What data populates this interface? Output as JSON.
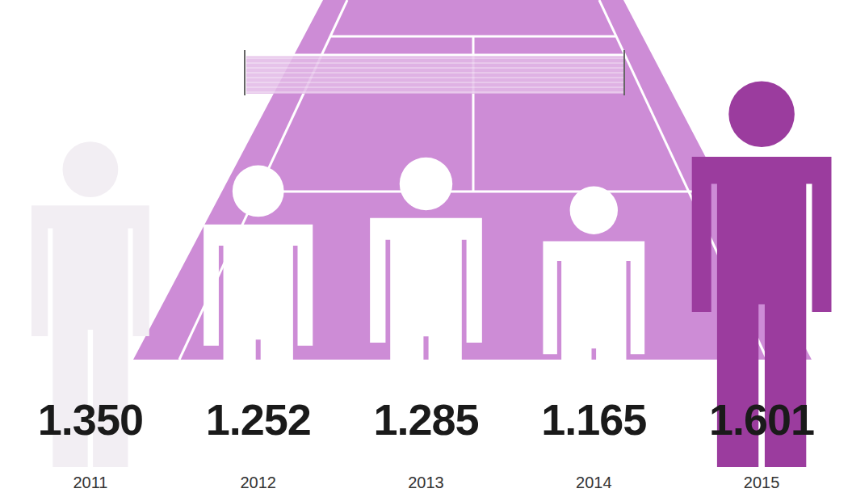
{
  "chart_data": {
    "type": "bar",
    "categories": [
      "2011",
      "2012",
      "2013",
      "2014",
      "2015"
    ],
    "values": [
      1350,
      1252,
      1285,
      1165,
      1601
    ],
    "value_labels": [
      "1.350",
      "1.252",
      "1.285",
      "1.165",
      "1.601"
    ],
    "colors": [
      "#f2eef3",
      "#ffffff",
      "#ffffff",
      "#ffffff",
      "#9b3c9e"
    ],
    "data_labels": true,
    "tick_labels": "x"
  }
}
